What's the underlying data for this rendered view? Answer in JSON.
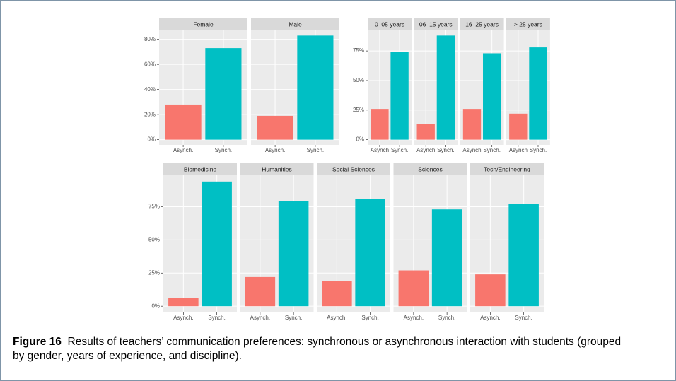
{
  "chart_data": [
    {
      "type": "bar",
      "categories": [
        "Asynch.",
        "Synch."
      ],
      "colors": [
        "#F8766D",
        "#00BFC4"
      ],
      "panels": [
        {
          "title": "Female",
          "values": [
            28,
            73
          ]
        },
        {
          "title": "Male",
          "values": [
            19,
            83
          ]
        }
      ],
      "ylim": [
        -4.15,
        87.15
      ],
      "yticks": [
        {
          "value": 0,
          "label": "0%"
        },
        {
          "value": 20,
          "label": "20%"
        },
        {
          "value": 40,
          "label": "40%"
        },
        {
          "value": 60,
          "label": "60%"
        },
        {
          "value": 80,
          "label": "80%"
        }
      ],
      "grid": true
    },
    {
      "type": "bar",
      "categories": [
        "Asynch",
        "Synch."
      ],
      "colors": [
        "#F8766D",
        "#00BFC4"
      ],
      "panels": [
        {
          "title": "0–05 years",
          "values": [
            26,
            74
          ]
        },
        {
          "title": "06–15 years",
          "values": [
            13,
            88
          ]
        },
        {
          "title": "16–25 years",
          "values": [
            26,
            73
          ]
        },
        {
          "title": "> 25 years",
          "values": [
            22,
            78
          ]
        }
      ],
      "ylim": [
        -4.4,
        92.4
      ],
      "yticks": [
        {
          "value": 0,
          "label": "0%"
        },
        {
          "value": 25,
          "label": "25%"
        },
        {
          "value": 50,
          "label": "50%"
        },
        {
          "value": 75,
          "label": "75%"
        }
      ],
      "grid": true
    },
    {
      "type": "bar",
      "categories": [
        "Asynch.",
        "Synch."
      ],
      "colors": [
        "#F8766D",
        "#00BFC4"
      ],
      "panels": [
        {
          "title": "Biomedicine",
          "values": [
            6,
            94
          ]
        },
        {
          "title": "Humanities",
          "values": [
            22,
            79
          ]
        },
        {
          "title": "Social Sciences",
          "values": [
            19,
            81
          ]
        },
        {
          "title": "Sciences",
          "values": [
            27,
            73
          ]
        },
        {
          "title": "Tech/Engineering",
          "values": [
            24,
            77
          ]
        }
      ],
      "ylim": [
        -4.7,
        98.7
      ],
      "yticks": [
        {
          "value": 0,
          "label": "0%"
        },
        {
          "value": 25,
          "label": "25%"
        },
        {
          "value": 50,
          "label": "50%"
        },
        {
          "value": 75,
          "label": "75%"
        }
      ],
      "grid": true
    }
  ],
  "caption": {
    "label": "Figure 16",
    "text": "Results of teachers’ communication preferences: synchronous or asynchronous interaction with students (grouped by gender, years of experience, and discipline)."
  }
}
